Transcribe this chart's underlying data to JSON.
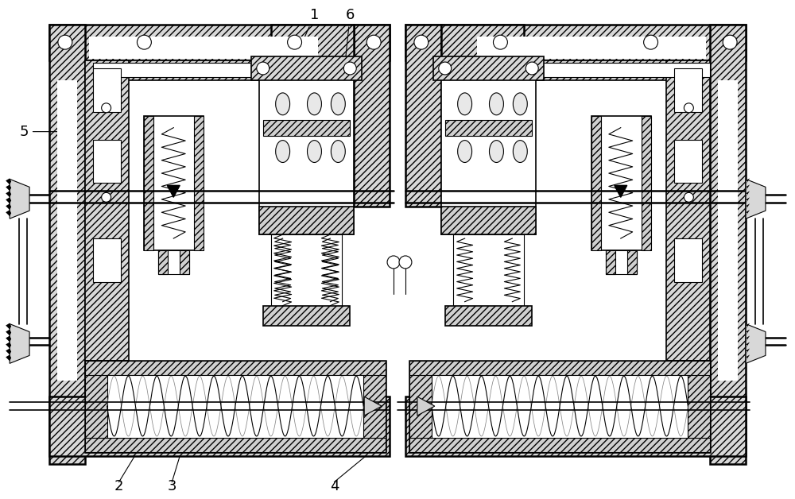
{
  "bg": "#ffffff",
  "lc": "#000000",
  "figw": 10.0,
  "figh": 6.28,
  "dpi": 100
}
